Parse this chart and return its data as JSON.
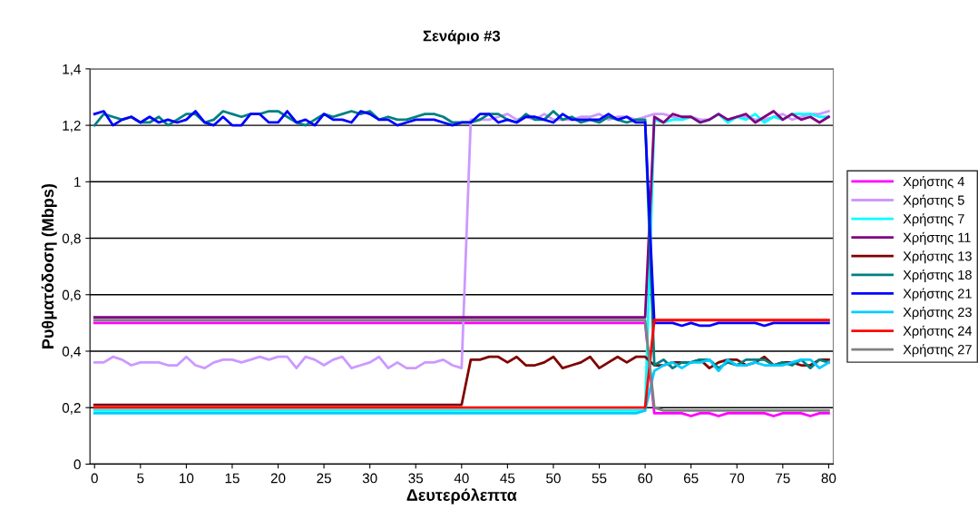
{
  "chart_data": {
    "type": "line",
    "title": "Σενάριο #3",
    "xlabel": "Δευτερόλεπτα",
    "ylabel": "Ρυθματόδοση (Mbps)",
    "x": [
      0,
      1,
      2,
      3,
      4,
      5,
      6,
      7,
      8,
      9,
      10,
      11,
      12,
      13,
      14,
      15,
      16,
      17,
      18,
      19,
      20,
      21,
      22,
      23,
      24,
      25,
      26,
      27,
      28,
      29,
      30,
      31,
      32,
      33,
      34,
      35,
      36,
      37,
      38,
      39,
      40,
      41,
      42,
      43,
      44,
      45,
      46,
      47,
      48,
      49,
      50,
      51,
      52,
      53,
      54,
      55,
      56,
      57,
      58,
      59,
      60,
      61,
      62,
      63,
      64,
      65,
      66,
      67,
      68,
      69,
      70,
      71,
      72,
      73,
      74,
      75,
      76,
      77,
      78,
      79,
      80
    ],
    "xlim": [
      -0.5,
      80.5
    ],
    "xticks": [
      0,
      5,
      10,
      15,
      20,
      25,
      30,
      35,
      40,
      45,
      50,
      55,
      60,
      65,
      70,
      75,
      80
    ],
    "ylim": [
      0,
      1.4
    ],
    "yticks": [
      {
        "value": 0,
        "label": "0"
      },
      {
        "value": 0.2,
        "label": "0,2"
      },
      {
        "value": 0.4,
        "label": "0,4"
      },
      {
        "value": 0.6,
        "label": "0,6"
      },
      {
        "value": 0.8,
        "label": "0,8"
      },
      {
        "value": 1,
        "label": "1"
      },
      {
        "value": 1.2,
        "label": "1,2"
      },
      {
        "value": 1.4,
        "label": "1,4"
      }
    ],
    "grid": "y",
    "legend": "right",
    "marker": "none",
    "line_style": "solid",
    "series": [
      {
        "name": "Χρήστης 4",
        "color": "#ff00ff",
        "values": [
          0.5,
          0.5,
          0.5,
          0.5,
          0.5,
          0.5,
          0.5,
          0.5,
          0.5,
          0.5,
          0.5,
          0.5,
          0.5,
          0.5,
          0.5,
          0.5,
          0.5,
          0.5,
          0.5,
          0.5,
          0.5,
          0.5,
          0.5,
          0.5,
          0.5,
          0.5,
          0.5,
          0.5,
          0.5,
          0.5,
          0.5,
          0.5,
          0.5,
          0.5,
          0.5,
          0.5,
          0.5,
          0.5,
          0.5,
          0.5,
          0.5,
          0.5,
          0.5,
          0.5,
          0.5,
          0.5,
          0.5,
          0.5,
          0.5,
          0.5,
          0.5,
          0.5,
          0.5,
          0.5,
          0.5,
          0.5,
          0.5,
          0.5,
          0.5,
          0.5,
          0.5,
          0.18,
          0.18,
          0.18,
          0.18,
          0.17,
          0.18,
          0.18,
          0.17,
          0.18,
          0.18,
          0.18,
          0.18,
          0.18,
          0.17,
          0.18,
          0.18,
          0.18,
          0.17,
          0.18,
          0.18
        ]
      },
      {
        "name": "Χρήστης 5",
        "color": "#cc99ff",
        "values": [
          0.36,
          0.36,
          0.38,
          0.37,
          0.35,
          0.36,
          0.36,
          0.36,
          0.35,
          0.35,
          0.38,
          0.35,
          0.34,
          0.36,
          0.37,
          0.37,
          0.36,
          0.37,
          0.38,
          0.37,
          0.38,
          0.38,
          0.34,
          0.38,
          0.37,
          0.35,
          0.37,
          0.38,
          0.34,
          0.35,
          0.36,
          0.38,
          0.34,
          0.36,
          0.34,
          0.34,
          0.36,
          0.36,
          0.37,
          0.35,
          0.34,
          1.22,
          1.22,
          1.22,
          1.23,
          1.24,
          1.22,
          1.23,
          1.22,
          1.24,
          1.22,
          1.22,
          1.22,
          1.23,
          1.23,
          1.24,
          1.22,
          1.23,
          1.23,
          1.22,
          1.23,
          1.24,
          1.24,
          1.23,
          1.22,
          1.23,
          1.22,
          1.22,
          1.24,
          1.22,
          1.23,
          1.23,
          1.22,
          1.22,
          1.23,
          1.24,
          1.22,
          1.23,
          1.24,
          1.24,
          1.25
        ]
      },
      {
        "name": "Χρήστης 7",
        "color": "#00ffff",
        "values": [
          0.19,
          0.19,
          0.19,
          0.19,
          0.19,
          0.19,
          0.19,
          0.19,
          0.19,
          0.19,
          0.19,
          0.19,
          0.19,
          0.19,
          0.19,
          0.19,
          0.19,
          0.19,
          0.19,
          0.19,
          0.19,
          0.19,
          0.19,
          0.19,
          0.19,
          0.19,
          0.19,
          0.19,
          0.19,
          0.19,
          0.19,
          0.19,
          0.19,
          0.19,
          0.19,
          0.19,
          0.19,
          0.19,
          0.19,
          0.19,
          0.19,
          0.19,
          0.19,
          0.19,
          0.19,
          0.19,
          0.19,
          0.19,
          0.19,
          0.19,
          0.19,
          0.19,
          0.19,
          0.19,
          0.19,
          0.19,
          0.19,
          0.19,
          0.19,
          0.19,
          0.19,
          1.22,
          1.21,
          1.22,
          1.22,
          1.23,
          1.21,
          1.22,
          1.24,
          1.21,
          1.23,
          1.22,
          1.24,
          1.21,
          1.23,
          1.22,
          1.24,
          1.24,
          1.24,
          1.23,
          1.23
        ]
      },
      {
        "name": "Χρήστης 11",
        "color": "#800080",
        "values": [
          0.52,
          0.52,
          0.52,
          0.52,
          0.52,
          0.52,
          0.52,
          0.52,
          0.52,
          0.52,
          0.52,
          0.52,
          0.52,
          0.52,
          0.52,
          0.52,
          0.52,
          0.52,
          0.52,
          0.52,
          0.52,
          0.52,
          0.52,
          0.52,
          0.52,
          0.52,
          0.52,
          0.52,
          0.52,
          0.52,
          0.52,
          0.52,
          0.52,
          0.52,
          0.52,
          0.52,
          0.52,
          0.52,
          0.52,
          0.52,
          0.52,
          0.52,
          0.52,
          0.52,
          0.52,
          0.52,
          0.52,
          0.52,
          0.52,
          0.52,
          0.52,
          0.52,
          0.52,
          0.52,
          0.52,
          0.52,
          0.52,
          0.52,
          0.52,
          0.52,
          0.52,
          1.23,
          1.21,
          1.24,
          1.23,
          1.23,
          1.21,
          1.22,
          1.24,
          1.22,
          1.23,
          1.24,
          1.21,
          1.23,
          1.25,
          1.22,
          1.24,
          1.22,
          1.23,
          1.21,
          1.23
        ]
      },
      {
        "name": "Χρήστης 13",
        "color": "#800000",
        "values": [
          0.21,
          0.21,
          0.21,
          0.21,
          0.21,
          0.21,
          0.21,
          0.21,
          0.21,
          0.21,
          0.21,
          0.21,
          0.21,
          0.21,
          0.21,
          0.21,
          0.21,
          0.21,
          0.21,
          0.21,
          0.21,
          0.21,
          0.21,
          0.21,
          0.21,
          0.21,
          0.21,
          0.21,
          0.21,
          0.21,
          0.21,
          0.21,
          0.21,
          0.21,
          0.21,
          0.21,
          0.21,
          0.21,
          0.21,
          0.21,
          0.21,
          0.37,
          0.37,
          0.38,
          0.38,
          0.36,
          0.38,
          0.35,
          0.35,
          0.36,
          0.38,
          0.34,
          0.35,
          0.36,
          0.38,
          0.34,
          0.36,
          0.38,
          0.36,
          0.38,
          0.38,
          0.35,
          0.35,
          0.36,
          0.36,
          0.36,
          0.37,
          0.34,
          0.36,
          0.37,
          0.37,
          0.35,
          0.36,
          0.38,
          0.35,
          0.36,
          0.36,
          0.35,
          0.35,
          0.37,
          0.37
        ]
      },
      {
        "name": "Χρήστης 18",
        "color": "#008080",
        "values": [
          1.2,
          1.24,
          1.23,
          1.22,
          1.23,
          1.21,
          1.21,
          1.23,
          1.2,
          1.22,
          1.24,
          1.24,
          1.21,
          1.22,
          1.25,
          1.24,
          1.23,
          1.24,
          1.24,
          1.25,
          1.25,
          1.23,
          1.21,
          1.2,
          1.22,
          1.24,
          1.23,
          1.24,
          1.25,
          1.24,
          1.25,
          1.22,
          1.23,
          1.22,
          1.22,
          1.23,
          1.24,
          1.24,
          1.23,
          1.21,
          1.21,
          1.21,
          1.22,
          1.24,
          1.24,
          1.22,
          1.21,
          1.24,
          1.22,
          1.22,
          1.25,
          1.22,
          1.23,
          1.21,
          1.22,
          1.21,
          1.23,
          1.22,
          1.21,
          1.22,
          1.22,
          0.35,
          0.37,
          0.34,
          0.36,
          0.36,
          0.37,
          0.37,
          0.34,
          0.36,
          0.35,
          0.37,
          0.37,
          0.37,
          0.35,
          0.36,
          0.35,
          0.37,
          0.34,
          0.37,
          0.36
        ]
      },
      {
        "name": "Χρήστης 21",
        "color": "#0000ff",
        "values": [
          1.24,
          1.25,
          1.2,
          1.22,
          1.23,
          1.21,
          1.23,
          1.21,
          1.22,
          1.21,
          1.22,
          1.25,
          1.21,
          1.2,
          1.23,
          1.2,
          1.2,
          1.24,
          1.24,
          1.21,
          1.21,
          1.25,
          1.21,
          1.22,
          1.2,
          1.24,
          1.22,
          1.22,
          1.21,
          1.25,
          1.24,
          1.22,
          1.22,
          1.2,
          1.21,
          1.22,
          1.22,
          1.22,
          1.21,
          1.2,
          1.21,
          1.21,
          1.24,
          1.24,
          1.21,
          1.22,
          1.21,
          1.23,
          1.23,
          1.22,
          1.21,
          1.24,
          1.22,
          1.22,
          1.22,
          1.22,
          1.24,
          1.22,
          1.23,
          1.21,
          1.21,
          0.5,
          0.5,
          0.5,
          0.49,
          0.5,
          0.49,
          0.49,
          0.5,
          0.5,
          0.5,
          0.5,
          0.5,
          0.49,
          0.5,
          0.5,
          0.5,
          0.5,
          0.5,
          0.5,
          0.5
        ]
      },
      {
        "name": "Χρήστης 23",
        "color": "#00ccff",
        "values": [
          0.18,
          0.18,
          0.18,
          0.18,
          0.18,
          0.18,
          0.18,
          0.18,
          0.18,
          0.18,
          0.18,
          0.18,
          0.18,
          0.18,
          0.18,
          0.18,
          0.18,
          0.18,
          0.18,
          0.18,
          0.18,
          0.18,
          0.18,
          0.18,
          0.18,
          0.18,
          0.18,
          0.18,
          0.18,
          0.18,
          0.18,
          0.18,
          0.18,
          0.18,
          0.18,
          0.18,
          0.18,
          0.18,
          0.18,
          0.18,
          0.18,
          0.18,
          0.18,
          0.18,
          0.18,
          0.18,
          0.18,
          0.18,
          0.18,
          0.18,
          0.18,
          0.18,
          0.18,
          0.18,
          0.18,
          0.18,
          0.18,
          0.18,
          0.18,
          0.18,
          0.19,
          0.33,
          0.35,
          0.36,
          0.34,
          0.36,
          0.36,
          0.37,
          0.33,
          0.37,
          0.35,
          0.35,
          0.36,
          0.35,
          0.35,
          0.35,
          0.36,
          0.37,
          0.37,
          0.34,
          0.36
        ]
      },
      {
        "name": "Χρήστης 24",
        "color": "#ff0000",
        "values": [
          0.2,
          0.2,
          0.2,
          0.2,
          0.2,
          0.2,
          0.2,
          0.2,
          0.2,
          0.2,
          0.2,
          0.2,
          0.2,
          0.2,
          0.2,
          0.2,
          0.2,
          0.2,
          0.2,
          0.2,
          0.2,
          0.2,
          0.2,
          0.2,
          0.2,
          0.2,
          0.2,
          0.2,
          0.2,
          0.2,
          0.2,
          0.2,
          0.2,
          0.2,
          0.2,
          0.2,
          0.2,
          0.2,
          0.2,
          0.2,
          0.2,
          0.2,
          0.2,
          0.2,
          0.2,
          0.2,
          0.2,
          0.2,
          0.2,
          0.2,
          0.2,
          0.2,
          0.2,
          0.2,
          0.2,
          0.2,
          0.2,
          0.2,
          0.2,
          0.2,
          0.2,
          0.51,
          0.51,
          0.51,
          0.51,
          0.51,
          0.51,
          0.51,
          0.51,
          0.51,
          0.51,
          0.51,
          0.51,
          0.51,
          0.51,
          0.51,
          0.51,
          0.51,
          0.51,
          0.51,
          0.51
        ]
      },
      {
        "name": "Χρήστης 27",
        "color": "#808080",
        "values": [
          0.51,
          0.51,
          0.51,
          0.51,
          0.51,
          0.51,
          0.51,
          0.51,
          0.51,
          0.51,
          0.51,
          0.51,
          0.51,
          0.51,
          0.51,
          0.51,
          0.51,
          0.51,
          0.51,
          0.51,
          0.51,
          0.51,
          0.51,
          0.51,
          0.51,
          0.51,
          0.51,
          0.51,
          0.51,
          0.51,
          0.51,
          0.51,
          0.51,
          0.51,
          0.51,
          0.51,
          0.51,
          0.51,
          0.51,
          0.51,
          0.51,
          0.51,
          0.51,
          0.51,
          0.51,
          0.51,
          0.51,
          0.51,
          0.51,
          0.51,
          0.51,
          0.51,
          0.51,
          0.51,
          0.51,
          0.51,
          0.51,
          0.51,
          0.51,
          0.51,
          0.51,
          0.2,
          0.19,
          0.19,
          0.19,
          0.19,
          0.19,
          0.19,
          0.19,
          0.19,
          0.19,
          0.19,
          0.19,
          0.19,
          0.19,
          0.19,
          0.19,
          0.19,
          0.19,
          0.19,
          0.19
        ]
      }
    ]
  }
}
